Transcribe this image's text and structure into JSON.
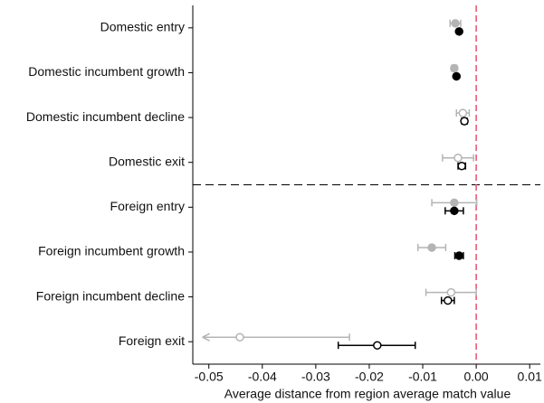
{
  "chart_data": {
    "type": "coefplot",
    "x_label": "Average distance from region average match value",
    "categories": [
      "Domestic entry",
      "Domestic incumbent growth",
      "Domestic incumbent decline",
      "Domestic exit",
      "Foreign entry",
      "Foreign incumbent growth",
      "Foreign incumbent decline",
      "Foreign exit"
    ],
    "series": [
      {
        "color": "#b4b4b4",
        "values": [
          -0.0039,
          -0.0041,
          -0.0025,
          -0.0034,
          -0.0041,
          -0.0083,
          -0.0047,
          -0.0442
        ],
        "ci_low": [
          -0.0049,
          -0.0046,
          -0.0037,
          -0.0063,
          -0.0083,
          -0.0109,
          -0.0094,
          -0.0512
        ],
        "ci_high": [
          -0.0029,
          -0.0036,
          -0.0013,
          -0.0005,
          0.0001,
          -0.0057,
          0.0,
          -0.0237
        ],
        "filled": [
          true,
          true,
          false,
          false,
          true,
          true,
          false,
          false
        ]
      },
      {
        "color": "#000000",
        "values": [
          -0.0032,
          -0.0037,
          -0.0022,
          -0.0027,
          -0.0041,
          -0.0032,
          -0.0053,
          -0.0185
        ],
        "ci_low": [
          -0.0034,
          -0.004,
          -0.0027,
          -0.0034,
          -0.0058,
          -0.004,
          -0.0065,
          -0.0258
        ],
        "ci_high": [
          -0.003,
          -0.0034,
          -0.0017,
          -0.002,
          -0.0024,
          -0.0024,
          -0.0041,
          -0.0114
        ],
        "filled": [
          true,
          true,
          false,
          false,
          true,
          true,
          false,
          false
        ]
      }
    ],
    "xlim": [
      -0.053,
      0.012
    ],
    "xticks": [
      -0.05,
      -0.04,
      -0.03,
      -0.02,
      -0.01,
      {
        "value": 0,
        "label": "0.00"
      },
      0.01
    ],
    "reference_line": {
      "value": 0,
      "color": "#e8506e"
    }
  }
}
